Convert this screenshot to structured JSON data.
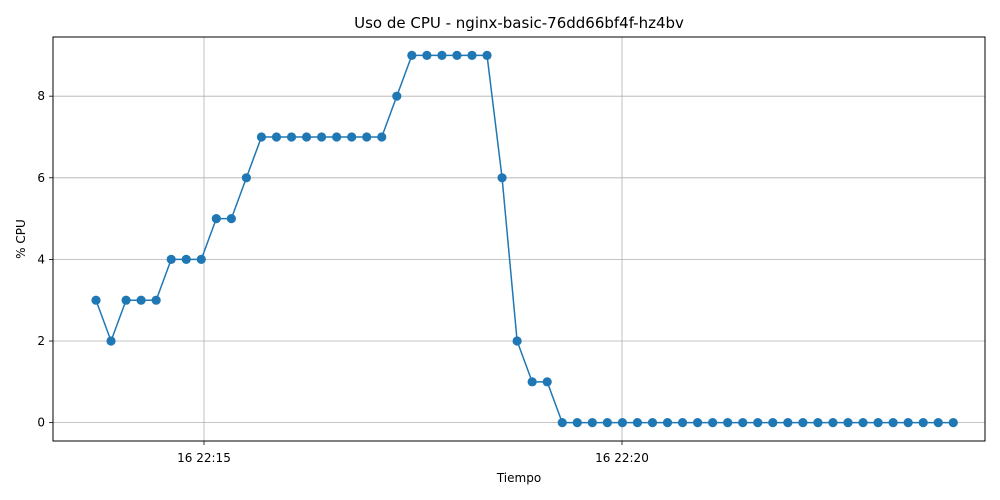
{
  "chart_data": {
    "type": "line",
    "title": "Uso de CPU - nginx-basic-76dd66bf4f-hz4bv",
    "xlabel": "Tiempo",
    "ylabel": "% CPU",
    "x_ticks": [
      "16 22:15",
      "16 22:20"
    ],
    "y_ticks": [
      "0",
      "2",
      "4",
      "6",
      "8"
    ],
    "ylim": [
      -0.45,
      9.45
    ],
    "grid": true,
    "color": "#1f77b4",
    "series": [
      {
        "values": [
          3,
          2,
          3,
          3,
          3,
          4,
          4,
          4,
          5,
          5,
          6,
          7,
          7,
          7,
          7,
          7,
          7,
          7,
          7,
          7,
          8,
          9,
          9,
          9,
          9,
          9,
          9,
          6,
          2,
          1,
          1,
          0,
          0,
          0,
          0,
          0,
          0,
          0,
          0,
          0,
          0,
          0,
          0,
          0,
          0,
          0,
          0,
          0,
          0,
          0,
          0,
          0,
          0,
          0,
          0,
          0,
          0,
          0
        ]
      }
    ]
  }
}
